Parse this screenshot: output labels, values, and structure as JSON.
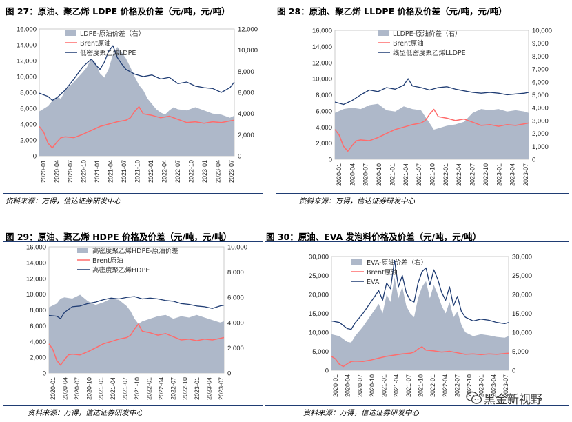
{
  "colors": {
    "gap": "#aeb8c9",
    "brent": "#ff6b6b",
    "pe": "#1f3c73",
    "rule": "#1f3c73"
  },
  "watermark": {
    "text": "黑金新视野",
    "icon": "wechat-icon"
  },
  "chart_data": [
    {
      "id": "p27",
      "type": "area",
      "title": "图 27：原油、聚乙烯 LDPE 价格及价差（元/吨，元/吨）",
      "source": "资料来源：万得，信达证券研发中心",
      "yticks_left": [
        "16,000",
        "14,000",
        "12,000",
        "10,000",
        "8,000",
        "6,000",
        "4,000",
        "2,000",
        "0"
      ],
      "yticks_right": [
        "12,000",
        "10,000",
        "8,000",
        "6,000",
        "4,000",
        "2,000",
        "0"
      ],
      "ylim_left": [
        0,
        16000
      ],
      "ylim_right": [
        0,
        12000
      ],
      "x_labels": [
        "2020-01",
        "2020-04",
        "2020-07",
        "2020-10",
        "2021-01",
        "2021-04",
        "2021-07",
        "2021-10",
        "2022-01",
        "2022-04",
        "2022-07",
        "2022-10",
        "2023-01",
        "2023-04",
        "2023-07"
      ],
      "x_range": [
        0,
        45
      ],
      "legend": [
        "LDPE-原油价差（右）",
        "Brent原油",
        "低密度聚乙烯LDPE"
      ],
      "series": [
        {
          "role": "gap",
          "axis": "right",
          "x": [
            0,
            2,
            3,
            4,
            5,
            6,
            8,
            10,
            11,
            12,
            13,
            14,
            15,
            16,
            17,
            18,
            19,
            20,
            21,
            22,
            23,
            24,
            25,
            26,
            27,
            28,
            29,
            30,
            31,
            32,
            34,
            36,
            38,
            40,
            42,
            44,
            45
          ],
          "values": [
            4200,
            4700,
            5200,
            5600,
            5400,
            6200,
            7000,
            7900,
            8400,
            9200,
            8800,
            7800,
            7400,
            8200,
            9600,
            10300,
            9800,
            9200,
            8400,
            7500,
            6700,
            6200,
            5400,
            4900,
            4400,
            4100,
            3900,
            4300,
            4600,
            4400,
            4300,
            4600,
            4300,
            4000,
            3900,
            3600,
            3800
          ]
        },
        {
          "role": "brent",
          "axis": "left",
          "x": [
            0,
            1,
            2,
            3,
            4,
            5,
            6,
            8,
            10,
            12,
            14,
            16,
            18,
            20,
            21,
            22,
            23,
            24,
            26,
            28,
            30,
            32,
            34,
            36,
            38,
            40,
            42,
            44,
            45
          ],
          "values": [
            3700,
            3000,
            1600,
            1000,
            1700,
            2300,
            2400,
            2300,
            2700,
            3200,
            3700,
            4000,
            4300,
            4500,
            4800,
            5600,
            6200,
            5300,
            5100,
            4800,
            5000,
            4600,
            4200,
            4300,
            4100,
            4300,
            4200,
            4400,
            4500
          ]
        },
        {
          "role": "pe",
          "axis": "left",
          "x": [
            0,
            2,
            3,
            4,
            6,
            8,
            10,
            12,
            13,
            14,
            15,
            16,
            17,
            18,
            19,
            20,
            21,
            22,
            24,
            26,
            28,
            30,
            32,
            34,
            36,
            38,
            40,
            42,
            44,
            45
          ],
          "values": [
            7900,
            7500,
            7000,
            7300,
            8300,
            9700,
            11200,
            12200,
            11500,
            10900,
            11800,
            13200,
            13900,
            12400,
            11600,
            10900,
            10600,
            10300,
            10000,
            10200,
            9700,
            9900,
            9100,
            9300,
            8800,
            8600,
            8500,
            8000,
            8600,
            9300
          ]
        }
      ]
    },
    {
      "id": "p28",
      "type": "area",
      "title": "图 28：原油、聚乙烯 LLDPE 价格及价差（元/吨，元/吨）",
      "source": "资料来源：万得，信达证券研发中心",
      "yticks_left": [
        "16,000",
        "14,000",
        "12,000",
        "10,000",
        "8,000",
        "6,000",
        "4,000",
        "2,000",
        "0"
      ],
      "yticks_right": [
        "10,000",
        "9,000",
        "8,000",
        "7,000",
        "6,000",
        "5,000",
        "4,000",
        "3,000",
        "2,000",
        "1,000",
        "0"
      ],
      "ylim_left": [
        0,
        16000
      ],
      "ylim_right": [
        0,
        10000
      ],
      "x_labels": [
        "2020-01",
        "2020-04",
        "2020-07",
        "2020-10",
        "2021-01",
        "2021-04",
        "2021-07",
        "2021-10",
        "2022-01",
        "2022-04",
        "2022-07",
        "2022-10",
        "2023-01",
        "2023-04",
        "2023-07"
      ],
      "x_range": [
        0,
        45
      ],
      "legend": [
        "LLDPE-原油价差（右）",
        "Brent原油",
        "线型低密度聚乙烯LLDPE"
      ],
      "series": [
        {
          "role": "gap",
          "axis": "right",
          "x": [
            0,
            2,
            4,
            6,
            8,
            10,
            12,
            14,
            16,
            18,
            20,
            21,
            22,
            23,
            24,
            26,
            28,
            30,
            32,
            34,
            36,
            38,
            40,
            42,
            44,
            45
          ],
          "values": [
            3600,
            3900,
            4000,
            3900,
            4200,
            4300,
            3800,
            3700,
            4100,
            3900,
            3800,
            3300,
            2800,
            2300,
            2400,
            2600,
            2700,
            2900,
            3600,
            3900,
            3800,
            3900,
            3700,
            3800,
            3700,
            3600
          ]
        },
        {
          "role": "brent",
          "axis": "left",
          "x": [
            0,
            1,
            2,
            3,
            4,
            5,
            6,
            8,
            10,
            12,
            14,
            16,
            18,
            20,
            21,
            22,
            23,
            24,
            26,
            28,
            30,
            32,
            34,
            36,
            38,
            40,
            42,
            44,
            45
          ],
          "values": [
            3700,
            3000,
            1600,
            1000,
            1700,
            2300,
            2400,
            2300,
            2700,
            3200,
            3700,
            4000,
            4300,
            4500,
            4800,
            5600,
            6200,
            5300,
            5100,
            4800,
            5000,
            4600,
            4200,
            4300,
            4100,
            4300,
            4200,
            4400,
            4500
          ]
        },
        {
          "role": "pe",
          "axis": "left",
          "x": [
            0,
            2,
            4,
            6,
            8,
            10,
            12,
            14,
            16,
            17,
            18,
            20,
            22,
            24,
            26,
            28,
            30,
            32,
            34,
            36,
            38,
            40,
            42,
            44,
            45
          ],
          "values": [
            7100,
            6800,
            7300,
            8000,
            8600,
            8400,
            8900,
            8700,
            9200,
            10000,
            9100,
            8900,
            8600,
            8900,
            9000,
            8700,
            8500,
            8300,
            8200,
            8300,
            8200,
            8000,
            8100,
            8200,
            8300
          ]
        }
      ]
    },
    {
      "id": "p29",
      "type": "area",
      "title": "图 29：原油、聚乙烯 HDPE 价格及价差（元/吨，元/吨）",
      "source": "资料来源：万得，信达证券研发中心",
      "yticks_left": [
        "16,000",
        "14,000",
        "12,000",
        "10,000",
        "8,000",
        "6,000",
        "4,000",
        "2,000",
        "0"
      ],
      "yticks_right": [
        "10,000",
        "8,000",
        "6,000",
        "4,000",
        "2,000",
        "0"
      ],
      "ylim_left": [
        0,
        16000
      ],
      "ylim_right": [
        0,
        10000
      ],
      "x_labels": [
        "2020-01",
        "2020-04",
        "2020-07",
        "2020-10",
        "2021-01",
        "2021-04",
        "2021-07",
        "2021-10",
        "2022-01",
        "2022-04",
        "2022-07",
        "2022-10",
        "2023-01",
        "2023-04",
        "2023-07"
      ],
      "x_range": [
        0,
        45
      ],
      "legend": [
        "高密度聚乙烯HDPE-原油价差",
        "Brent原油",
        "高密度聚乙烯HDPE"
      ],
      "series": [
        {
          "role": "gap",
          "axis": "right",
          "x": [
            0,
            2,
            3,
            4,
            6,
            8,
            10,
            12,
            14,
            16,
            18,
            20,
            21,
            22,
            23,
            24,
            26,
            28,
            30,
            32,
            34,
            36,
            38,
            40,
            42,
            44,
            45
          ],
          "values": [
            5200,
            5500,
            5900,
            6000,
            5900,
            6200,
            5700,
            5400,
            5600,
            5900,
            5800,
            5300,
            4900,
            4300,
            3900,
            4100,
            4300,
            4500,
            4600,
            4300,
            4500,
            4400,
            4600,
            4400,
            4200,
            4000,
            4100
          ]
        },
        {
          "role": "brent",
          "axis": "left",
          "x": [
            0,
            1,
            2,
            3,
            4,
            5,
            6,
            8,
            10,
            12,
            14,
            16,
            18,
            20,
            21,
            22,
            23,
            24,
            26,
            28,
            30,
            32,
            34,
            36,
            38,
            40,
            42,
            44,
            45
          ],
          "values": [
            3700,
            3000,
            1600,
            1000,
            1700,
            2300,
            2400,
            2300,
            2700,
            3200,
            3700,
            4000,
            4300,
            4500,
            4800,
            5600,
            6200,
            5300,
            5100,
            4800,
            5000,
            4600,
            4200,
            4300,
            4100,
            4300,
            4200,
            4400,
            4500
          ]
        },
        {
          "role": "pe",
          "axis": "left",
          "x": [
            0,
            2,
            3,
            4,
            6,
            8,
            10,
            12,
            14,
            16,
            18,
            20,
            22,
            24,
            26,
            28,
            30,
            32,
            34,
            36,
            38,
            40,
            42,
            44,
            45
          ],
          "values": [
            7300,
            7200,
            6900,
            7700,
            8400,
            8500,
            8800,
            9000,
            9300,
            9500,
            9400,
            9600,
            9700,
            9400,
            9500,
            9400,
            9200,
            9100,
            8800,
            8700,
            8500,
            8400,
            8200,
            8500,
            8600
          ]
        }
      ]
    },
    {
      "id": "p30",
      "type": "area",
      "title": "图 30：原油、EVA 发泡料价格及价差（元/吨，元/吨）",
      "source": "资料来源：万得，信达证券研发中心",
      "yticks_left": [
        "30,000",
        "25,000",
        "20,000",
        "15,000",
        "10,000",
        "5,000",
        "0"
      ],
      "yticks_right": [
        "30,000",
        "25,000",
        "20,000",
        "15,000",
        "10,000",
        "5,000",
        "0"
      ],
      "ylim_left": [
        0,
        30000
      ],
      "ylim_right": [
        0,
        30000
      ],
      "x_labels": [
        "2020-01",
        "2020-04",
        "2020-07",
        "2020-10",
        "2021-01",
        "2021-04",
        "2021-07",
        "2021-10",
        "2022-01",
        "2022-04",
        "2022-07",
        "2022-10",
        "2023-01",
        "2023-04",
        "2023-07"
      ],
      "x_range": [
        0,
        45
      ],
      "legend": [
        "EVA-原油价差（右）",
        "Brent原油",
        "EVA"
      ],
      "series": [
        {
          "role": "gap",
          "axis": "right",
          "x": [
            0,
            2,
            4,
            5,
            6,
            8,
            10,
            12,
            13,
            14,
            15,
            16,
            17,
            18,
            19,
            20,
            21,
            22,
            23,
            24,
            25,
            26,
            27,
            28,
            29,
            30,
            31,
            32,
            33,
            34,
            36,
            38,
            40,
            42,
            44,
            45
          ],
          "values": [
            9500,
            9000,
            7500,
            7300,
            9000,
            11500,
            14500,
            17500,
            15000,
            20000,
            18000,
            24500,
            19000,
            22000,
            17000,
            15000,
            14000,
            19000,
            22000,
            23500,
            19000,
            22500,
            20000,
            17000,
            15000,
            18000,
            14000,
            15500,
            12000,
            10000,
            9000,
            9500,
            9200,
            8800,
            8600,
            9000
          ]
        },
        {
          "role": "brent",
          "axis": "left",
          "x": [
            0,
            1,
            2,
            3,
            4,
            5,
            6,
            8,
            10,
            12,
            14,
            16,
            18,
            20,
            21,
            22,
            23,
            24,
            26,
            28,
            30,
            32,
            34,
            36,
            38,
            40,
            42,
            44,
            45
          ],
          "values": [
            3700,
            3000,
            1600,
            1000,
            1700,
            2300,
            2400,
            2300,
            2700,
            3200,
            3700,
            4000,
            4300,
            4500,
            4800,
            5600,
            6200,
            5300,
            5100,
            4800,
            5000,
            4600,
            4200,
            4300,
            4100,
            4300,
            4200,
            4400,
            4500
          ]
        },
        {
          "role": "pe",
          "axis": "left",
          "x": [
            0,
            2,
            4,
            5,
            6,
            8,
            10,
            12,
            13,
            14,
            15,
            16,
            17,
            18,
            19,
            20,
            21,
            22,
            23,
            24,
            25,
            26,
            27,
            28,
            29,
            30,
            31,
            32,
            33,
            34,
            36,
            38,
            40,
            42,
            44,
            45
          ],
          "values": [
            13000,
            12600,
            11000,
            10800,
            12500,
            15000,
            18000,
            21000,
            18500,
            23000,
            21500,
            29000,
            22000,
            25000,
            20500,
            18500,
            18000,
            23000,
            26000,
            27000,
            22500,
            26500,
            24000,
            20500,
            18500,
            22000,
            17000,
            19500,
            15500,
            14000,
            13000,
            13500,
            13200,
            12600,
            12300,
            12600
          ]
        }
      ]
    }
  ]
}
